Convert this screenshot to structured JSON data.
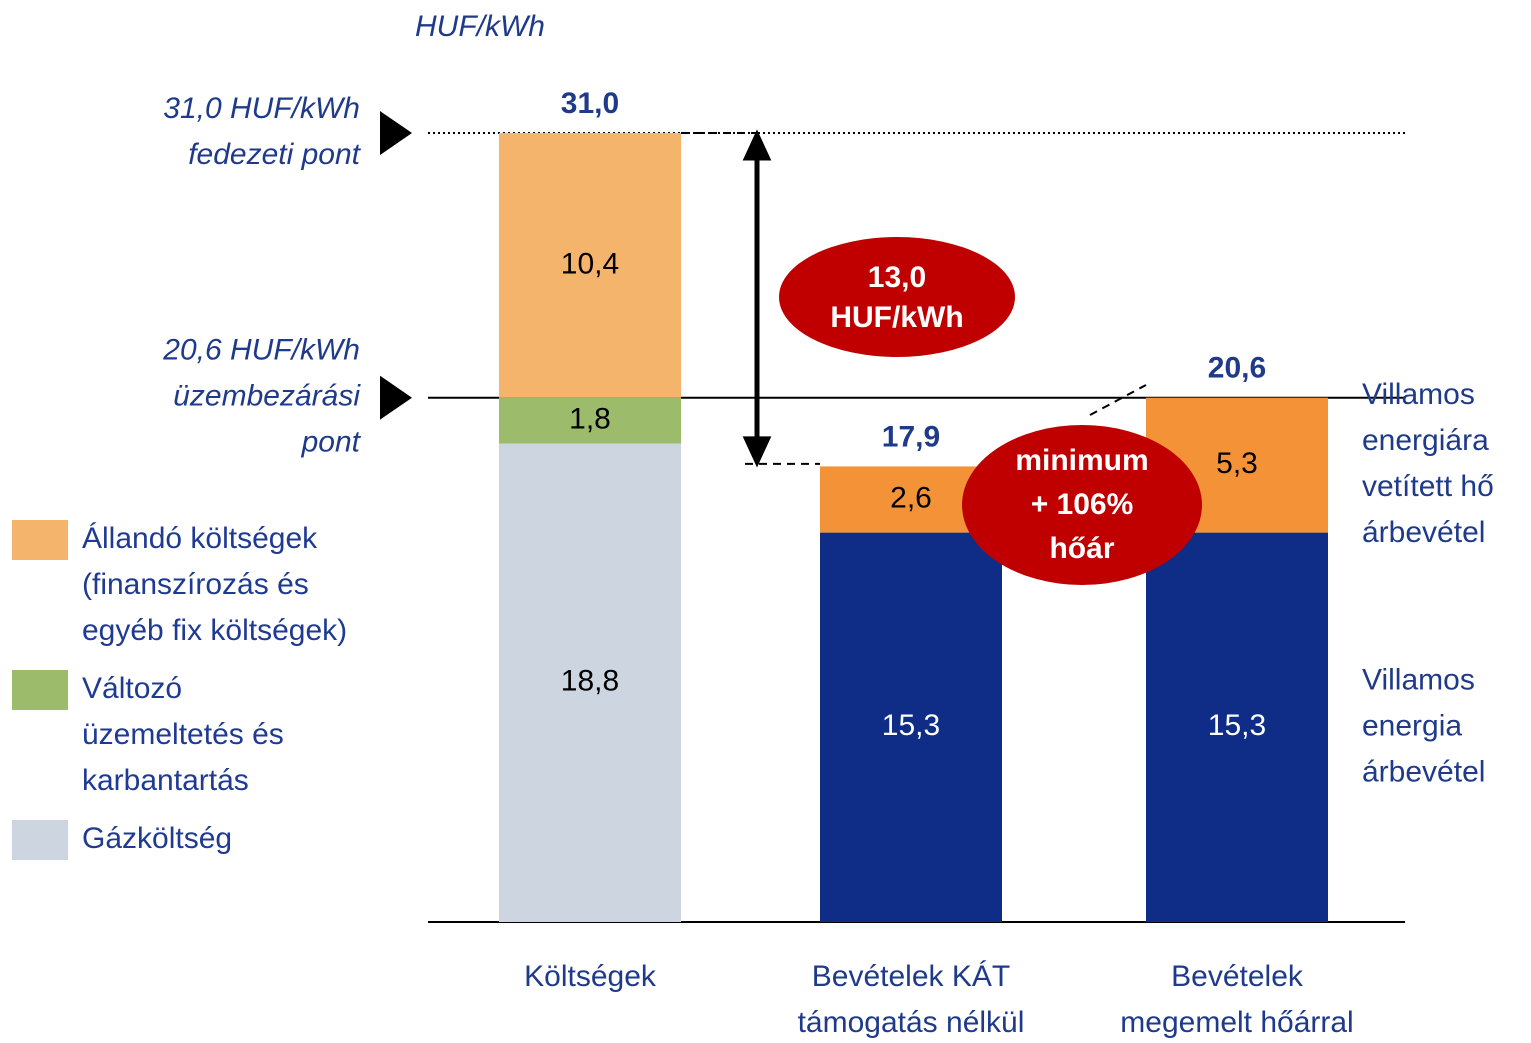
{
  "chart_data": {
    "type": "stacked_bar",
    "unit_label": "HUF/kWh",
    "categories": [
      "Költségek",
      "Bevételek KÁT\ntámogatás nélkül",
      "Bevételek\nmegemelt hőárral"
    ],
    "ylim": [
      0,
      31
    ],
    "legend": "left",
    "series": [
      {
        "name": "Gázköltség",
        "color": "#cdd5e0",
        "values": [
          18.8,
          null,
          null
        ],
        "value_labels": [
          "18,8",
          null,
          null
        ]
      },
      {
        "name": "Változó\nüzemeltetés és\nkarbantartás",
        "color": "#9cbb6b",
        "values": [
          1.8,
          null,
          null
        ],
        "value_labels": [
          "1,8",
          null,
          null
        ]
      },
      {
        "name": "Állandó költségek\n(finanszírozás és\negyéb fix költségek)",
        "color": "#f5b46c",
        "values": [
          10.4,
          null,
          null
        ],
        "value_labels": [
          "10,4",
          null,
          null
        ]
      },
      {
        "name": "Villamos\nenergia\nárbevétel",
        "color": "#0f2d87",
        "values": [
          null,
          15.3,
          15.3
        ],
        "value_labels": [
          null,
          "15,3",
          "15,3"
        ],
        "label_position": "right"
      },
      {
        "name": "Villamos\nenergiára\nvetített hő\nárbevétel",
        "color": "#f39237",
        "values": [
          null,
          2.6,
          5.3
        ],
        "value_labels": [
          null,
          "2,6",
          "5,3"
        ],
        "label_position": "right"
      }
    ],
    "totals": {
      "values": [
        31.0,
        17.9,
        20.6
      ],
      "value_labels": [
        "31,0",
        "17,9",
        "20,6"
      ]
    },
    "reference_lines": [
      {
        "value": 31.0,
        "label": "31,0 HUF/kWh\nfedezeti pont",
        "style": "dotted"
      },
      {
        "value": 20.6,
        "label": "20,6 HUF/kWh\nüzembezárási\npont",
        "style": "solid"
      }
    ],
    "annotations": [
      {
        "label": "13,0\nHUF/kWh",
        "value": 13.0
      },
      {
        "label": "minimum\n+ 106%\nhőár"
      }
    ]
  }
}
